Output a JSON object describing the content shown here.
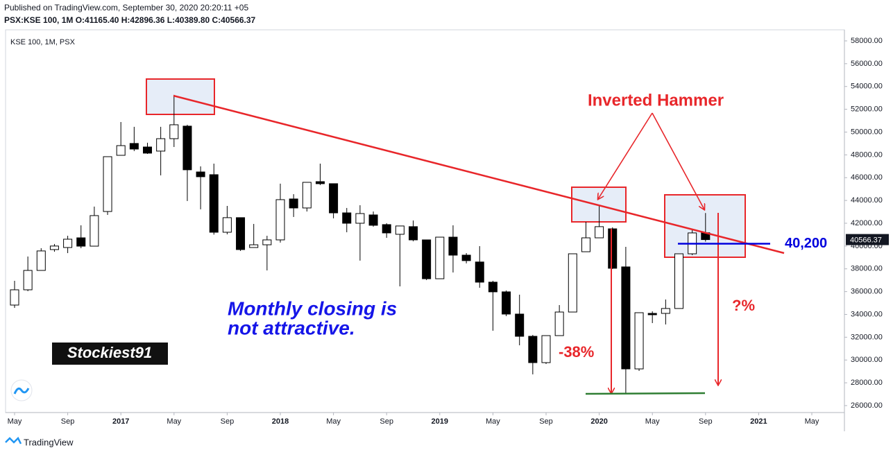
{
  "header": {
    "published": "Published on TradingView.com, September 30, 2020 20:20:11 +05",
    "quote": "PSX:KSE 100, 1M O:41165.40 H:42896.36 L:40389.80 C:40566.37"
  },
  "footer": {
    "brand": "TradingView"
  },
  "chart_data": {
    "type": "candlestick",
    "title": "KSE 100, 1M, PSX",
    "categories": [
      "May",
      null,
      null,
      null,
      "Sep",
      null,
      null,
      null,
      "2017",
      null,
      null,
      null,
      "May",
      null,
      null,
      null,
      "Sep",
      null,
      null,
      null,
      "2018",
      null,
      null,
      null,
      "May",
      null,
      null,
      null,
      "Sep",
      null,
      null,
      null,
      "2019",
      null,
      null,
      null,
      "May",
      null,
      null,
      null,
      "Sep",
      null,
      null,
      null,
      "2020",
      null,
      null,
      null,
      "May",
      null,
      null,
      null,
      "Sep",
      null,
      null,
      null,
      "2021",
      null,
      null,
      null,
      "May"
    ],
    "open": [
      34820,
      36160,
      37860,
      39690,
      39870,
      40720,
      39990,
      43030,
      47960,
      49000,
      48690,
      48330,
      49420,
      50520,
      46500,
      46260,
      41210,
      42490,
      39870,
      40110,
      40540,
      44130,
      43340,
      45650,
      45470,
      42910,
      42000,
      42730,
      41880,
      41030,
      41700,
      40540,
      37130,
      40780,
      39200,
      38600,
      36830,
      35980,
      34030,
      32080,
      29770,
      32140,
      34210,
      39500,
      40720,
      41510,
      38170,
      29220,
      34090,
      34090,
      34520,
      39320,
      41165.4,
      null,
      null,
      null,
      null,
      null,
      null,
      null,
      null
    ],
    "high": [
      36950,
      39080,
      39810,
      40180,
      40900,
      41820,
      43460,
      47840,
      50880,
      50460,
      49060,
      50460,
      53260,
      50640,
      46990,
      47230,
      43520,
      42490,
      41940,
      40900,
      45470,
      44550,
      45590,
      47230,
      45470,
      43340,
      43580,
      43030,
      42000,
      41760,
      42240,
      40540,
      40780,
      41820,
      39380,
      39990,
      36950,
      36100,
      35730,
      32200,
      32140,
      34820,
      39320,
      42120,
      43520,
      41640,
      39930,
      34150,
      34270,
      35310,
      39320,
      41510,
      42896.36,
      null,
      null,
      null,
      null,
      null,
      null,
      null,
      null
    ],
    "low": [
      34580,
      36040,
      37860,
      39500,
      39380,
      39810,
      39990,
      42730,
      47960,
      48330,
      48080,
      46200,
      48690,
      43950,
      43220,
      41000,
      41030,
      39570,
      39870,
      37860,
      40300,
      42550,
      43030,
      45350,
      42430,
      41210,
      38720,
      41700,
      40720,
      36460,
      40420,
      37010,
      37130,
      37680,
      38480,
      36340,
      32570,
      33850,
      31290,
      28740,
      29650,
      32140,
      34210,
      39500,
      40720,
      37990,
      27100,
      29040,
      33240,
      33120,
      34520,
      39200,
      40389.8,
      null,
      null,
      null,
      null,
      null,
      null,
      null,
      null
    ],
    "close": [
      36160,
      37860,
      39570,
      40000,
      40600,
      39990,
      42670,
      47840,
      48810,
      48510,
      48150,
      49420,
      50640,
      46690,
      46080,
      41210,
      42490,
      39690,
      40110,
      40540,
      44070,
      43340,
      45590,
      45470,
      42910,
      42000,
      42850,
      41820,
      41150,
      41760,
      40540,
      37130,
      40780,
      39200,
      38720,
      36830,
      35980,
      34030,
      32080,
      29770,
      32140,
      34210,
      39320,
      40720,
      41700,
      38050,
      29220,
      34150,
      33970,
      34520,
      39320,
      41150,
      40566.37,
      null,
      null,
      null,
      null,
      null,
      null,
      null,
      null
    ],
    "up_color": "#ffffff",
    "down_color": "#000000",
    "outline_color": "#000000",
    "ylim": [
      25390,
      58850
    ],
    "yticks": [
      {
        "value": 26000,
        "label": "26000.00"
      },
      {
        "value": 28000,
        "label": "28000.00"
      },
      {
        "value": 30000,
        "label": "30000.00"
      },
      {
        "value": 32000,
        "label": "32000.00"
      },
      {
        "value": 34000,
        "label": "34000.00"
      },
      {
        "value": 36000,
        "label": "36000.00"
      },
      {
        "value": 38000,
        "label": "38000.00"
      },
      {
        "value": 40000,
        "label": "40000.00"
      },
      {
        "value": 42000,
        "label": "42000.00"
      },
      {
        "value": 44000,
        "label": "44000.00"
      },
      {
        "value": 46000,
        "label": "46000.00"
      },
      {
        "value": 48000,
        "label": "48000.00"
      },
      {
        "value": 50000,
        "label": "50000.00"
      },
      {
        "value": 52000,
        "label": "52000.00"
      },
      {
        "value": 54000,
        "label": "54000.00"
      },
      {
        "value": 56000,
        "label": "56000.00"
      },
      {
        "value": 58000,
        "label": "58000.00"
      }
    ],
    "grid": false,
    "last_price": 40566.37,
    "level": {
      "value": 40200,
      "label": "40,200",
      "color": "#0000dd"
    },
    "annotations": {
      "pattern": "Inverted Hammer",
      "comment": [
        "Monthly closing is",
        "not attractive."
      ],
      "drop": "-38%",
      "next_drop": "?%",
      "author": "Stockiest91"
    }
  }
}
